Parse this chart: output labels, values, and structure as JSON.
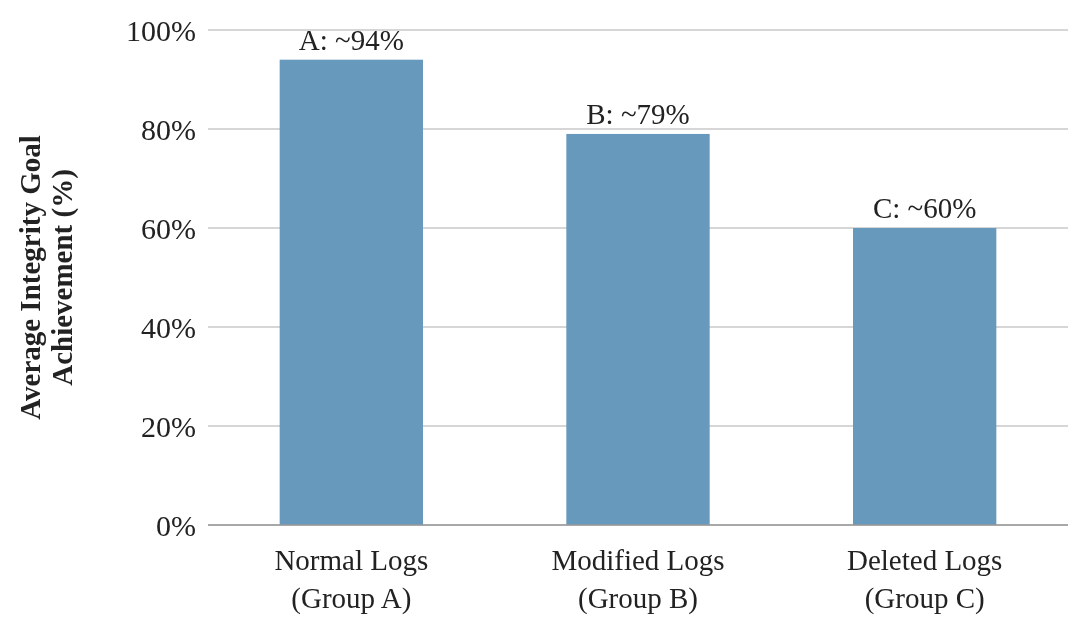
{
  "chart_data": {
    "type": "bar",
    "ylabel": "Average Integrity Goal Achievement (%)",
    "categories": [
      "Normal Logs (Group A)",
      "Modified Logs (Group B)",
      "Deleted Logs (Group C)"
    ],
    "values": [
      94,
      79,
      60
    ],
    "color": "#6699bb",
    "value_labels": [
      "A: ~94%",
      "B: ~79%",
      "C: ~60%"
    ],
    "ylim": [
      0,
      100
    ],
    "yticks": [
      {
        "value": 0,
        "label": "0%"
      },
      {
        "value": 20,
        "label": "20%"
      },
      {
        "value": 40,
        "label": "40%"
      },
      {
        "value": 60,
        "label": "60%"
      },
      {
        "value": 80,
        "label": "80%"
      },
      {
        "value": 100,
        "label": "100%"
      }
    ],
    "grid": "y"
  }
}
